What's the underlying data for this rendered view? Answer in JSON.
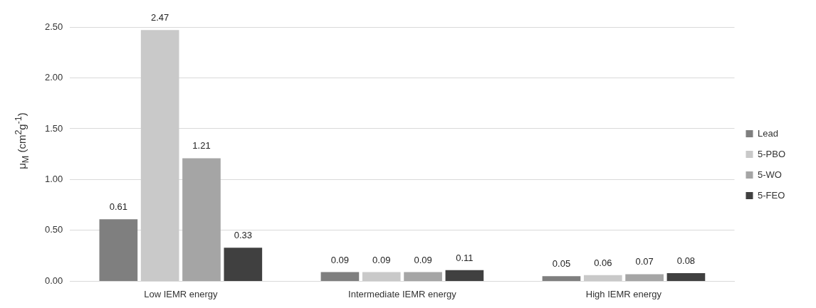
{
  "chart_data": {
    "type": "bar",
    "ylabel": "μ$_{M}$ (cm$^{2}$g$^{-1}$)",
    "categories": [
      "Low IEMR energy",
      "Intermediate IEMR energy",
      "High IEMR energy"
    ],
    "series": [
      {
        "name": "Lead",
        "color": "#7f7f7f",
        "values": [
          0.61,
          0.09,
          0.05
        ]
      },
      {
        "name": "5-PBO",
        "color": "#c9c9c9",
        "values": [
          2.47,
          0.09,
          0.06
        ]
      },
      {
        "name": "5-WO",
        "color": "#a5a5a5",
        "values": [
          1.21,
          0.09,
          0.07
        ]
      },
      {
        "name": "5-FEO",
        "color": "#404040",
        "values": [
          0.33,
          0.11,
          0.08
        ]
      }
    ],
    "ylim": [
      0,
      2.5
    ],
    "yticks": [
      {
        "value": 0,
        "label": "0.00"
      },
      {
        "value": 0.5,
        "label": "0.50"
      },
      {
        "value": 1,
        "label": "1.00"
      },
      {
        "value": 1.5,
        "label": "1.50"
      },
      {
        "value": 2,
        "label": "2.00"
      },
      {
        "value": 2.5,
        "label": "2.50"
      }
    ],
    "grid": "y",
    "legend": "right",
    "data_labels": true
  }
}
